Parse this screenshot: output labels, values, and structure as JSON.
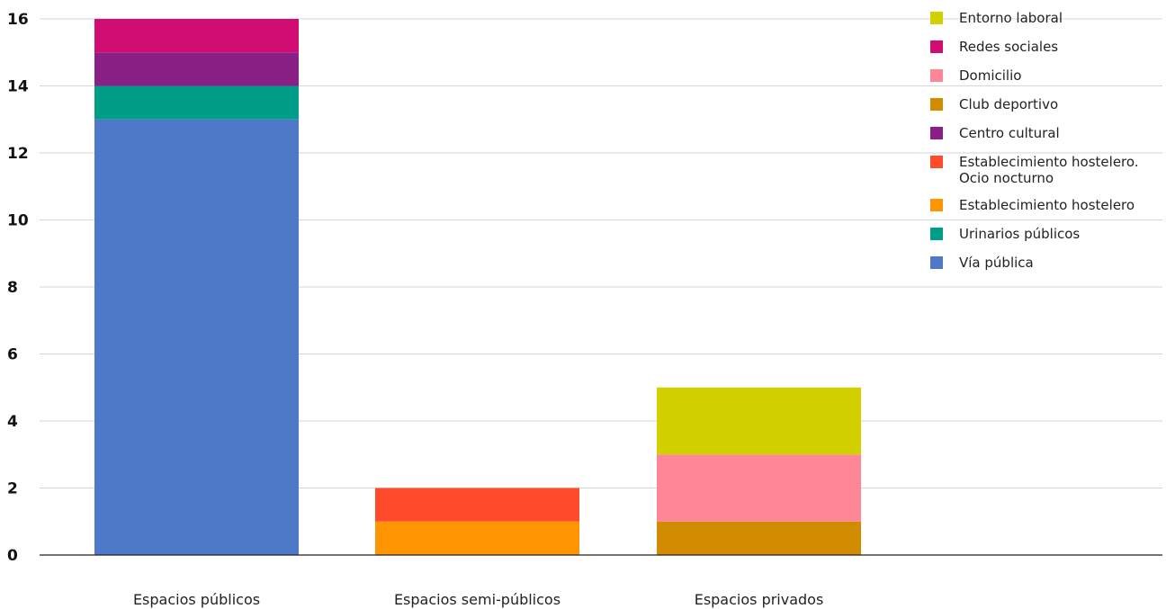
{
  "chart_data": {
    "type": "bar",
    "stacked": true,
    "categories": [
      "Espacios públicos",
      "Espacios semi-públicos",
      "Espacios privados"
    ],
    "ylim": [
      0,
      16
    ],
    "yticks": [
      "0",
      "2",
      "4",
      "6",
      "8",
      "10",
      "12",
      "14",
      "16"
    ],
    "grid": true,
    "legend_position": "right",
    "series": [
      {
        "name": "Vía pública",
        "color": "#4e79c9",
        "values": [
          13,
          0,
          0
        ]
      },
      {
        "name": "Urinarios públicos",
        "color": "#009e87",
        "values": [
          1,
          0,
          0
        ]
      },
      {
        "name": "Establecimiento hostelero",
        "color": "#ff9500",
        "values": [
          0,
          1,
          0
        ]
      },
      {
        "name": "Establecimiento hostelero.\nOcio nocturno",
        "color": "#ff4a2c",
        "values": [
          0,
          1,
          0
        ]
      },
      {
        "name": "Centro cultural",
        "color": "#8a1f85",
        "values": [
          1,
          0,
          0
        ]
      },
      {
        "name": "Club deportivo",
        "color": "#d18b00",
        "values": [
          0,
          0,
          1
        ]
      },
      {
        "name": "Domicilio",
        "color": "#ff8696",
        "values": [
          0,
          0,
          2
        ]
      },
      {
        "name": "Redes sociales",
        "color": "#d10d74",
        "values": [
          1,
          0,
          0
        ]
      },
      {
        "name": "Entorno laboral",
        "color": "#d3d000",
        "values": [
          0,
          0,
          2
        ]
      }
    ],
    "legend_order": [
      "Entorno laboral",
      "Redes sociales",
      "Domicilio",
      "Club deportivo",
      "Centro cultural",
      "Establecimiento hostelero.\nOcio nocturno",
      "Establecimiento hostelero",
      "Urinarios públicos",
      "Vía pública"
    ]
  }
}
